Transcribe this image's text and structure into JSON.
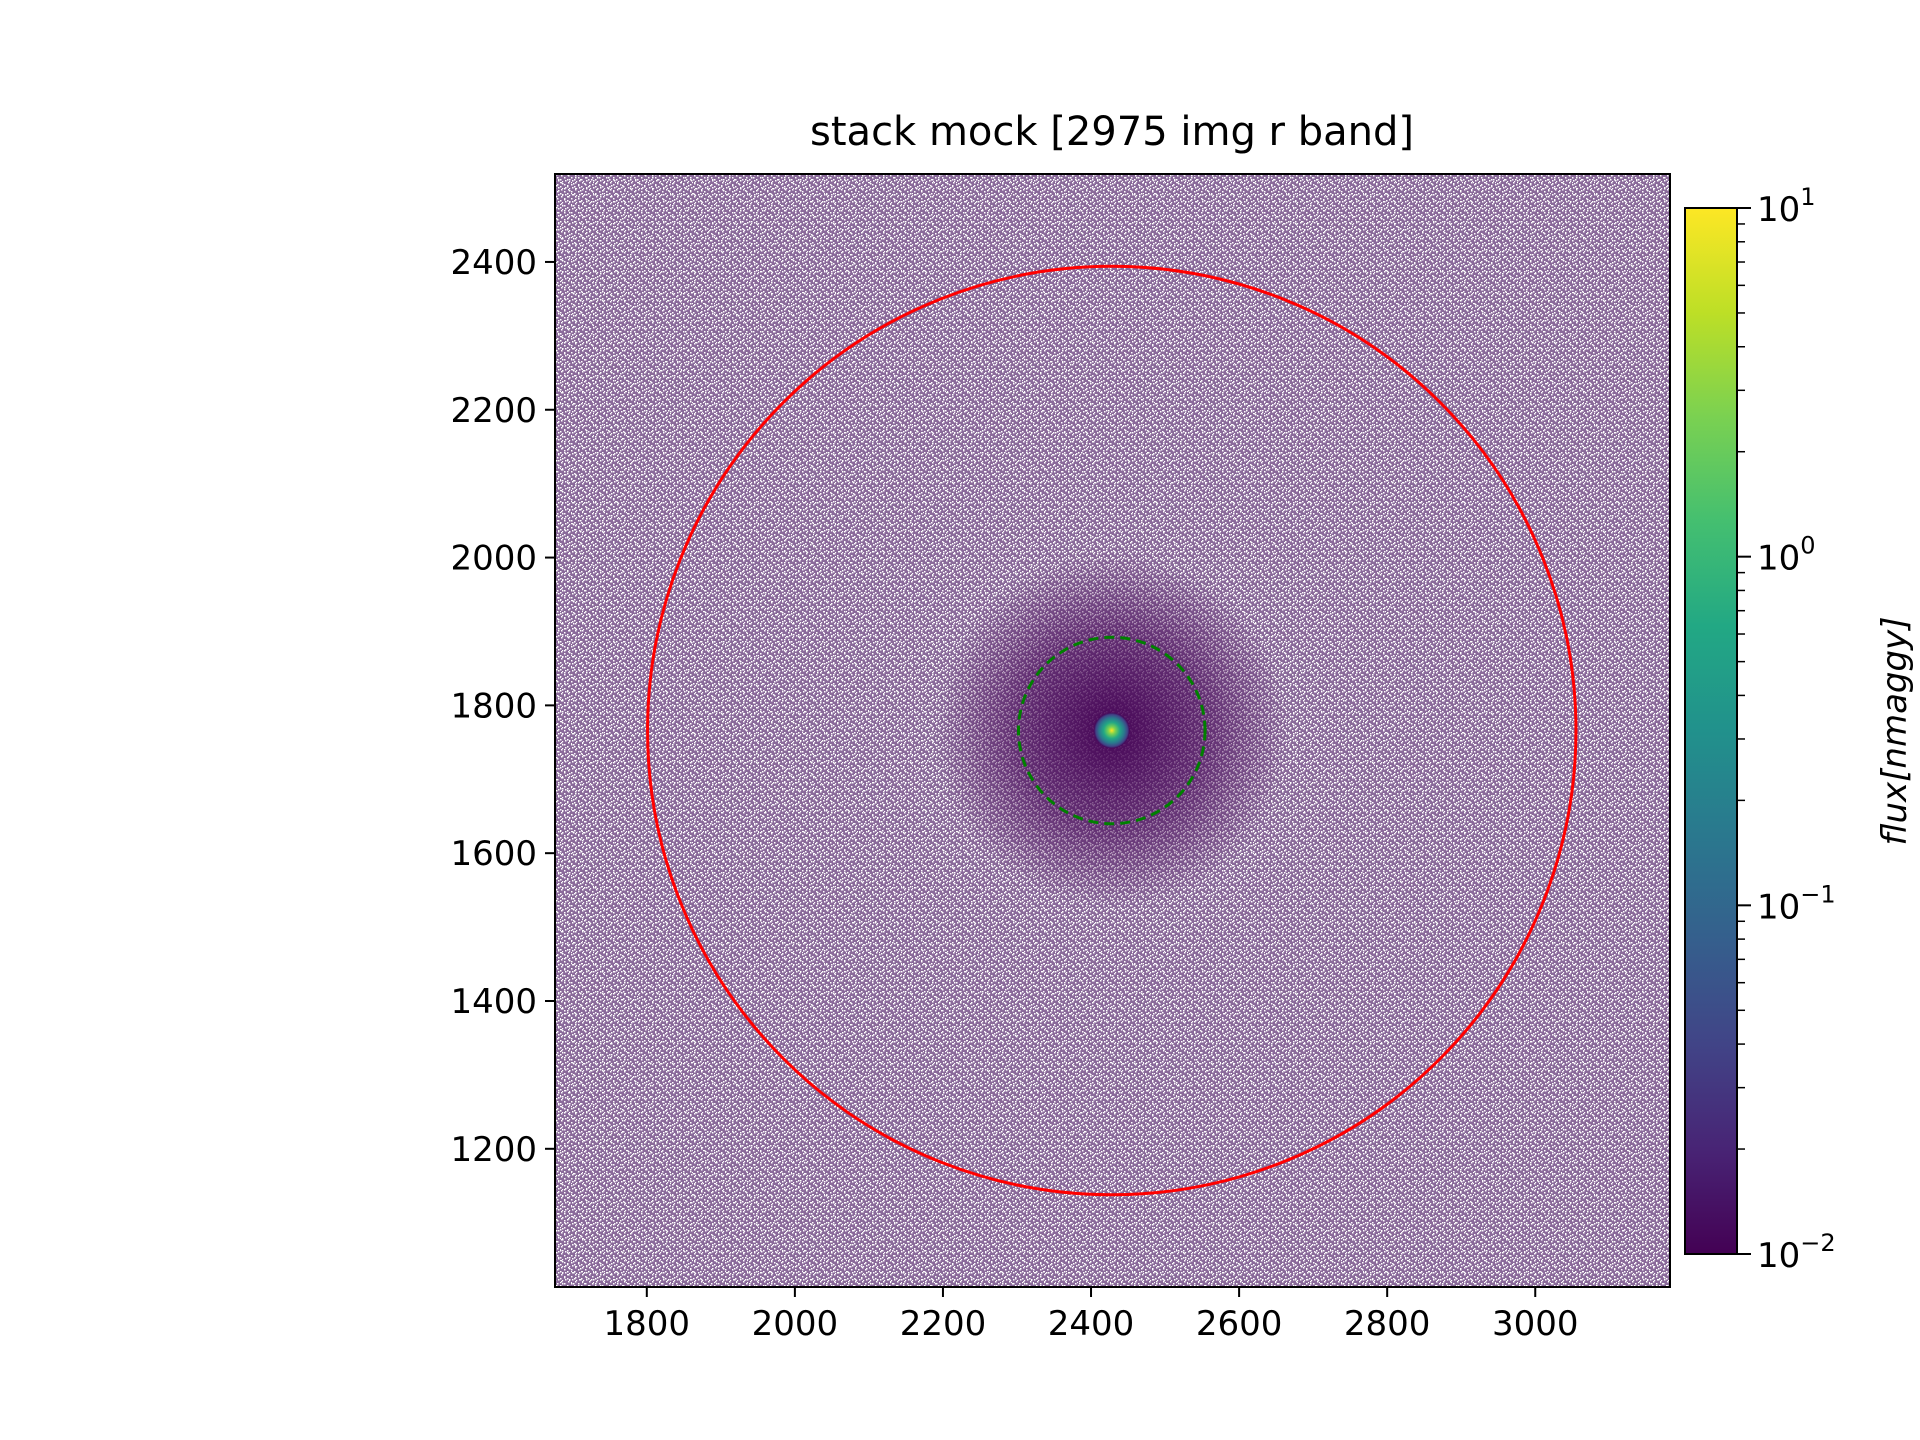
{
  "chart_data": {
    "type": "heatmap",
    "title": "stack mock [2975 img r band]",
    "xlabel": "",
    "ylabel": "",
    "xlim": [
      1676,
      3182
    ],
    "ylim": [
      1013,
      2519
    ],
    "x_ticks": [
      1800,
      2000,
      2200,
      2400,
      2600,
      2800,
      3000
    ],
    "x_tick_labels": [
      "1800",
      "2000",
      "2200",
      "2400",
      "2600",
      "2800",
      "3000"
    ],
    "y_ticks": [
      1200,
      1400,
      1600,
      1800,
      2000,
      2200,
      2400
    ],
    "y_tick_labels": [
      "1200",
      "1400",
      "1600",
      "1800",
      "2000",
      "2200",
      "2400"
    ],
    "source_center": {
      "x": 2428,
      "y": 1766
    },
    "circles": [
      {
        "name": "outer",
        "cx": 2428,
        "cy": 1766,
        "r": 627,
        "color": "#ff0000",
        "style": "solid"
      },
      {
        "name": "inner",
        "cx": 2428,
        "cy": 1766,
        "r": 126,
        "color": "#008000",
        "style": "dashed"
      }
    ],
    "colorbar": {
      "label": "flux[nmaggy]",
      "scale": "log",
      "range": [
        0.01,
        10
      ],
      "colormap": "viridis",
      "tick_labels": [
        {
          "value": 10,
          "base": "10",
          "exp": "1"
        },
        {
          "value": 1,
          "base": "10",
          "exp": "0"
        },
        {
          "value": 0.1,
          "base": "10",
          "exp": "−1"
        },
        {
          "value": 0.01,
          "base": "10",
          "exp": "−2"
        }
      ]
    },
    "background_colors": {
      "low": "#440154",
      "masked": "#ffffff"
    }
  }
}
